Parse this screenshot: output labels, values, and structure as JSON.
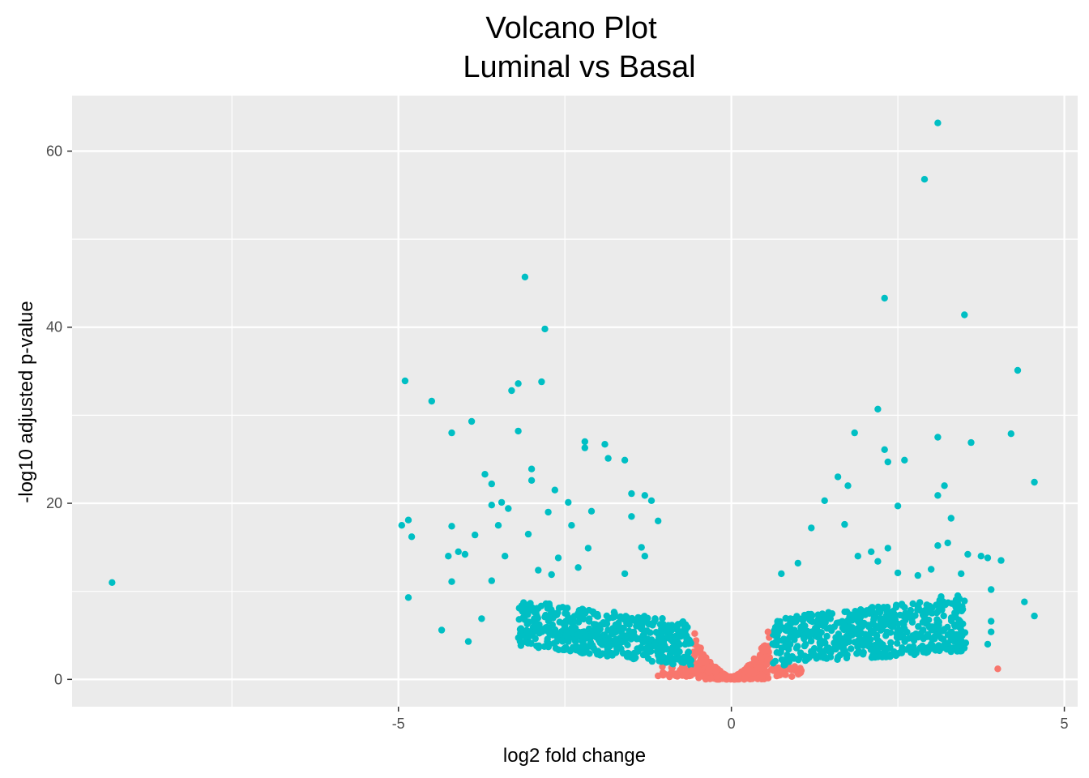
{
  "chart_data": {
    "type": "scatter",
    "title_line1": "Volcano Plot",
    "title_line2": "Luminal vs Basal",
    "xlabel": "log2 fold change",
    "ylabel": "-log10 adjusted p-value",
    "xlim": [
      -9.9,
      5.2
    ],
    "ylim": [
      -3.1,
      66.3
    ],
    "x_ticks": [
      -5,
      0,
      5
    ],
    "x_tick_labels": [
      "-5",
      "0",
      "5"
    ],
    "y_ticks": [
      0,
      20,
      40,
      60
    ],
    "y_tick_labels": [
      "0",
      "20",
      "40",
      "60"
    ],
    "grid": true,
    "legend": "none",
    "colors": {
      "panel": "#EBEBEB",
      "grid": "#FFFFFF",
      "significant": "#00BFC4",
      "not_significant": "#F8766D",
      "tick_text": "#4D4D4D",
      "tick_mark": "#333333"
    },
    "series": [
      {
        "color": "#F8766D",
        "points": [
          [
            4.0,
            1.2
          ],
          [
            -0.55,
            5.2
          ],
          [
            0.55,
            5.4
          ],
          [
            -0.6,
            1.0
          ],
          [
            0.6,
            1.1
          ],
          [
            -1.0,
            0.6
          ],
          [
            1.0,
            0.7
          ],
          [
            -1.1,
            0.4
          ],
          [
            1.05,
            1.0
          ]
        ]
      },
      {
        "color": "#00BFC4",
        "points": [
          [
            -9.3,
            11.0
          ],
          [
            -4.9,
            33.9
          ],
          [
            -4.5,
            31.6
          ],
          [
            -4.2,
            28.0
          ],
          [
            -3.9,
            29.3
          ],
          [
            -4.95,
            17.5
          ],
          [
            -4.85,
            18.1
          ],
          [
            -4.8,
            16.2
          ],
          [
            -4.85,
            9.3
          ],
          [
            -4.2,
            17.4
          ],
          [
            -4.25,
            14.0
          ],
          [
            -4.1,
            14.5
          ],
          [
            -4.0,
            14.2
          ],
          [
            -4.2,
            11.1
          ],
          [
            -4.35,
            5.6
          ],
          [
            -3.95,
            4.3
          ],
          [
            -3.85,
            16.4
          ],
          [
            -3.7,
            23.3
          ],
          [
            -3.6,
            22.2
          ],
          [
            -3.6,
            19.8
          ],
          [
            -3.5,
            17.5
          ],
          [
            -3.45,
            20.1
          ],
          [
            -3.35,
            19.4
          ],
          [
            -3.3,
            32.8
          ],
          [
            -3.2,
            33.6
          ],
          [
            -3.2,
            28.2
          ],
          [
            -3.1,
            45.7
          ],
          [
            -3.0,
            23.9
          ],
          [
            -3.0,
            22.6
          ],
          [
            -2.85,
            33.8
          ],
          [
            -2.8,
            39.8
          ],
          [
            -2.75,
            19.0
          ],
          [
            -2.65,
            21.5
          ],
          [
            -2.6,
            13.8
          ],
          [
            -2.45,
            20.1
          ],
          [
            -2.4,
            17.5
          ],
          [
            -2.2,
            27.0
          ],
          [
            -2.2,
            26.3
          ],
          [
            -2.1,
            19.1
          ],
          [
            -1.9,
            26.7
          ],
          [
            -1.85,
            25.1
          ],
          [
            -1.6,
            24.9
          ],
          [
            -1.5,
            21.1
          ],
          [
            -1.3,
            20.9
          ],
          [
            -1.2,
            20.3
          ],
          [
            -1.1,
            18.0
          ],
          [
            -1.5,
            18.5
          ],
          [
            -1.35,
            15.0
          ],
          [
            -2.15,
            14.9
          ],
          [
            -3.05,
            16.5
          ],
          [
            -2.9,
            12.4
          ],
          [
            -3.4,
            14.0
          ],
          [
            -3.6,
            11.2
          ],
          [
            -3.75,
            6.9
          ],
          [
            -2.7,
            11.9
          ],
          [
            -2.3,
            12.7
          ],
          [
            -1.6,
            12.0
          ],
          [
            -1.3,
            14.0
          ],
          [
            2.2,
            30.7
          ],
          [
            2.3,
            43.3
          ],
          [
            2.3,
            26.1
          ],
          [
            2.35,
            24.7
          ],
          [
            2.5,
            19.7
          ],
          [
            2.6,
            24.9
          ],
          [
            2.9,
            56.8
          ],
          [
            3.1,
            63.2
          ],
          [
            3.1,
            27.5
          ],
          [
            3.1,
            20.9
          ],
          [
            3.2,
            22.0
          ],
          [
            3.3,
            18.3
          ],
          [
            3.5,
            41.4
          ],
          [
            3.6,
            26.9
          ],
          [
            1.85,
            28.0
          ],
          [
            1.6,
            23.0
          ],
          [
            1.75,
            22.0
          ],
          [
            1.4,
            20.3
          ],
          [
            1.7,
            17.6
          ],
          [
            1.2,
            17.2
          ],
          [
            4.2,
            27.9
          ],
          [
            4.3,
            35.1
          ],
          [
            4.55,
            22.4
          ],
          [
            4.4,
            8.8
          ],
          [
            4.55,
            7.2
          ],
          [
            4.05,
            13.5
          ],
          [
            3.75,
            14.0
          ],
          [
            3.85,
            13.8
          ],
          [
            3.55,
            14.2
          ],
          [
            3.9,
            10.2
          ],
          [
            3.9,
            6.6
          ],
          [
            3.85,
            4.0
          ],
          [
            3.25,
            15.5
          ],
          [
            3.1,
            15.2
          ],
          [
            2.5,
            12.1
          ],
          [
            2.2,
            13.4
          ],
          [
            2.1,
            14.5
          ],
          [
            2.35,
            14.9
          ],
          [
            1.9,
            14.0
          ],
          [
            1.0,
            13.2
          ],
          [
            0.75,
            12.0
          ],
          [
            3.0,
            12.5
          ],
          [
            3.45,
            12.0
          ],
          [
            3.4,
            9.5
          ],
          [
            3.15,
            9.4
          ],
          [
            3.5,
            8.9
          ],
          [
            3.9,
            5.4
          ],
          [
            2.8,
            11.8
          ]
        ]
      }
    ]
  }
}
